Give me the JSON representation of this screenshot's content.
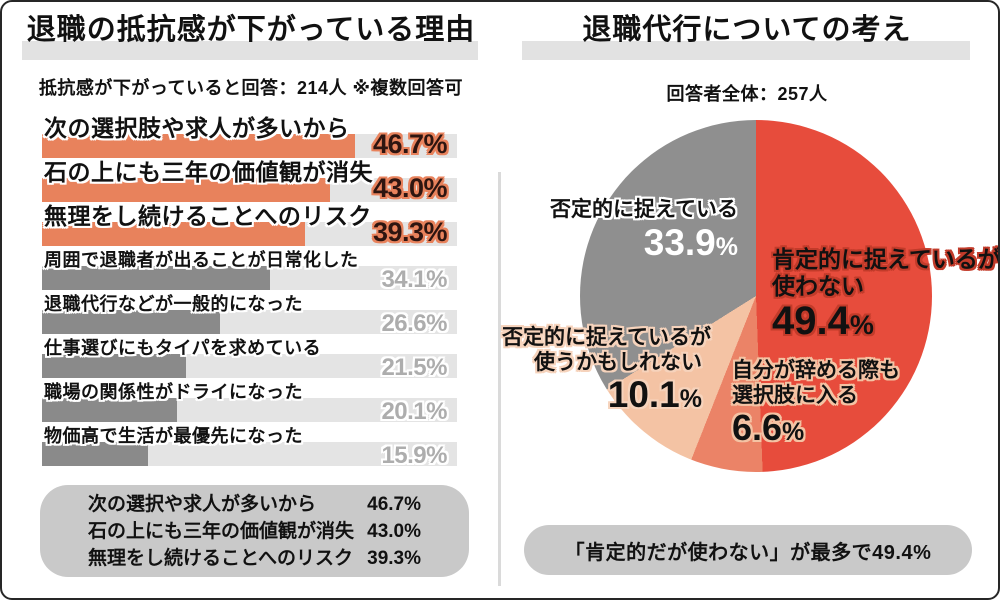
{
  "left_panel": {
    "title": "退職の抵抗感が下がっている理由",
    "subtitle": "抵抗感が下がっていると回答：214人 ※複数回答可",
    "summary": {
      "rows": [
        {
          "label": "次の選択や求人が多いから",
          "value": "46.7%"
        },
        {
          "label": "石の上にも三年の価値観が消失",
          "value": "43.0%"
        },
        {
          "label": "無理をし続けることへのリスク",
          "value": "39.3%"
        }
      ]
    }
  },
  "right_panel": {
    "title": "退職代行についての考え",
    "subtitle": "回答者全体：257人",
    "footer": "「肯定的だが使わない」が最多で49.4%"
  },
  "chart_data": [
    {
      "type": "bar",
      "orientation": "horizontal",
      "title": "退職の抵抗感が下がっている理由",
      "note": "抵抗感が下がっていると回答：214人 ※複数回答可",
      "xlim": [
        0,
        62
      ],
      "grid": false,
      "highlight_top": 3,
      "categories": [
        "次の選択肢や求人が多いから",
        "石の上にも三年の価値観が消失",
        "無理をし続けることへのリスク",
        "周囲で退職者が出ることが日常化した",
        "退職代行などが一般的になった",
        "仕事選びにもタイパを求めている",
        "職場の関係性がドライになった",
        "物価高で生活が最優先になった"
      ],
      "values": [
        46.7,
        43.0,
        39.3,
        34.1,
        26.6,
        21.5,
        20.1,
        15.9
      ],
      "rows": [
        {
          "label": "次の選択肢や求人が多いから",
          "value": 46.7,
          "display": "46.7%"
        },
        {
          "label": "石の上にも三年の価値観が消失",
          "value": 43.0,
          "display": "43.0%"
        },
        {
          "label": "無理をし続けることへのリスク",
          "value": 39.3,
          "display": "39.3%"
        },
        {
          "label": "周囲で退職者が出ることが日常化した",
          "value": 34.1,
          "display": "34.1%"
        },
        {
          "label": "退職代行などが一般的になった",
          "value": 26.6,
          "display": "26.6%"
        },
        {
          "label": "仕事選びにもタイパを求めている",
          "value": 21.5,
          "display": "21.5%"
        },
        {
          "label": "職場の関係性がドライになった",
          "value": 20.1,
          "display": "20.1%"
        },
        {
          "label": "物価高で生活が最優先になった",
          "value": 15.9,
          "display": "15.9%"
        }
      ],
      "colors": {
        "highlight": "#E8825C",
        "normal": "#8A8A8A",
        "track": "#E4E4E4",
        "highlight_value_text": "#2E1510",
        "normal_value_text": "#ADADAD"
      }
    },
    {
      "type": "pie",
      "title": "退職代行についての考え",
      "total_label": "回答者全体：257人",
      "start": "top",
      "direction": "clockwise",
      "pct_unit": "%",
      "slices": [
        {
          "label": "肯定的に捉えているが使わない",
          "label_lines": [
            "肯定的に捉えているが",
            "使わない"
          ],
          "value": 49.4,
          "pct": "49.4",
          "color": "#E74C3C"
        },
        {
          "label": "自分が辞める際も選択肢に入る",
          "label_lines": [
            "自分が辞める際も",
            "選択肢に入る"
          ],
          "value": 6.6,
          "pct": "6.6",
          "color": "#EB8367"
        },
        {
          "label": "否定的に捉えているが使うかもしれない",
          "label_lines": [
            "否定的に捉えているが",
            "使うかもしれない"
          ],
          "value": 10.1,
          "pct": "10.1",
          "color": "#F4C3A4"
        },
        {
          "label": "否定的に捉えている",
          "label_lines": [
            "否定的に捉えている"
          ],
          "value": 33.9,
          "pct": "33.9",
          "color": "#8F8F8F"
        }
      ]
    }
  ]
}
